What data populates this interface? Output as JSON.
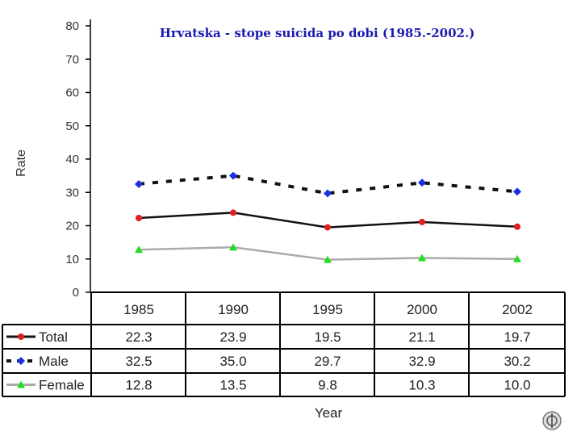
{
  "chart_data": {
    "type": "line",
    "title": "Hrvatska - stope suicida po dobi (1985.-2002.)",
    "ylabel": "Rate",
    "xlabel": "Year",
    "ylim": [
      0,
      80
    ],
    "yticks": [
      "0",
      "10",
      "20",
      "30",
      "40",
      "50",
      "60",
      "70",
      "80"
    ],
    "categories": [
      "1985",
      "1990",
      "1995",
      "2000",
      "2002"
    ],
    "grid": false,
    "legend_placement": "left of data table",
    "series": [
      {
        "name": "Total",
        "values": [
          22.3,
          23.9,
          19.5,
          21.1,
          19.7
        ],
        "labels": [
          "22.3",
          "23.9",
          "19.5",
          "21.1",
          "19.7"
        ],
        "color": "#e01e1e",
        "line_color": "#111111",
        "style": "solid",
        "marker": "circle"
      },
      {
        "name": "Male",
        "values": [
          32.5,
          35.0,
          29.7,
          32.9,
          30.2
        ],
        "labels": [
          "32.5",
          "35.0",
          "29.7",
          "32.9",
          "30.2"
        ],
        "color": "#1a2fe0",
        "line_color": "#111111",
        "style": "dashed",
        "marker": "diamond"
      },
      {
        "name": "Female",
        "values": [
          12.8,
          13.5,
          9.8,
          10.3,
          10.0
        ],
        "labels": [
          "12.8",
          "13.5",
          "9.8",
          "10.3",
          "10.0"
        ],
        "color": "#22dd22",
        "line_color": "#aaaaaa",
        "style": "solid",
        "marker": "triangle"
      }
    ]
  },
  "logo": {
    "name": "who-emblem-icon"
  }
}
